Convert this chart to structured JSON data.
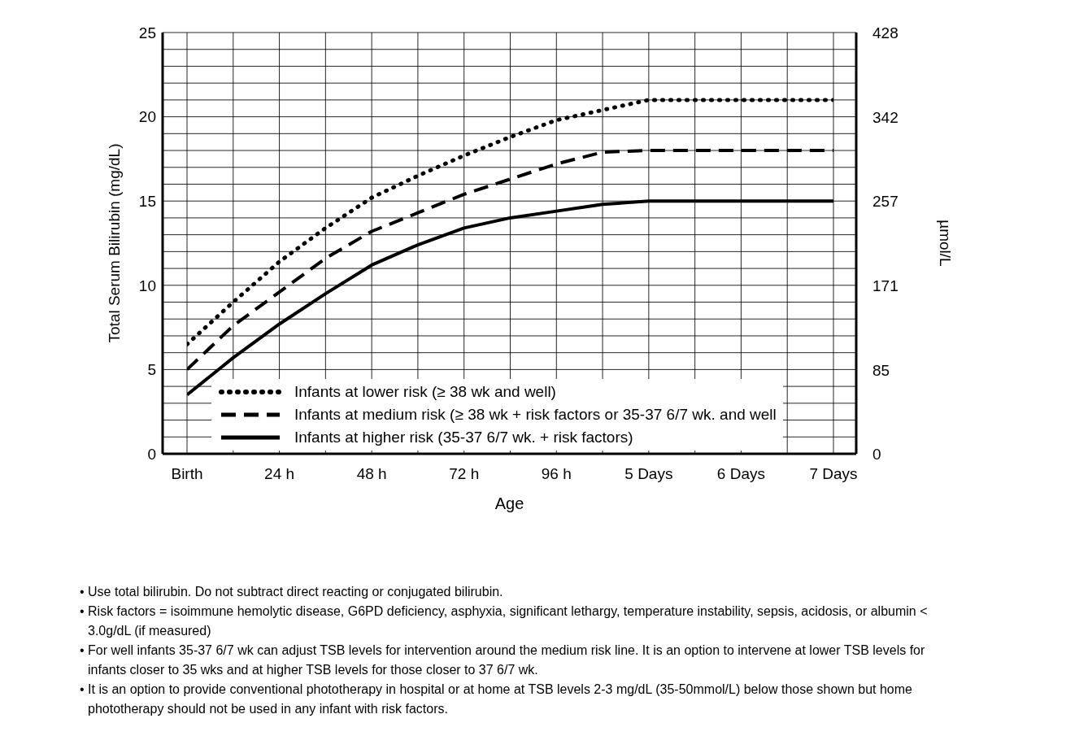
{
  "chart_data": {
    "type": "line",
    "xlabel": "Age",
    "ylabel": "Total Serum Bilirubin (mg/dL)",
    "y2label": "µmol/L",
    "categories": [
      "Birth",
      null,
      "24 h",
      null,
      "48 h",
      null,
      "72 h",
      null,
      "96 h",
      null,
      "5 Days",
      null,
      "6 Days",
      null,
      "7 Days"
    ],
    "ylim": [
      0,
      25
    ],
    "yticks": [
      0,
      {
        "value": 1,
        "label": null
      },
      {
        "value": 2,
        "label": null
      },
      {
        "value": 3,
        "label": null
      },
      {
        "value": 4,
        "label": null
      },
      5,
      {
        "value": 6,
        "label": null
      },
      {
        "value": 7,
        "label": null
      },
      {
        "value": 8,
        "label": null
      },
      {
        "value": 9,
        "label": null
      },
      10,
      {
        "value": 11,
        "label": null
      },
      {
        "value": 12,
        "label": null
      },
      {
        "value": 13,
        "label": null
      },
      {
        "value": 14,
        "label": null
      },
      15,
      {
        "value": 16,
        "label": null
      },
      {
        "value": 17,
        "label": null
      },
      {
        "value": 18,
        "label": null
      },
      {
        "value": 19,
        "label": null
      },
      20,
      {
        "value": 21,
        "label": null
      },
      {
        "value": 22,
        "label": null
      },
      {
        "value": 23,
        "label": null
      },
      {
        "value": 24,
        "label": null
      },
      25
    ],
    "y2lim": [
      0,
      428
    ],
    "y2ticks": [
      0,
      85,
      171,
      257,
      342,
      428
    ],
    "grid": true,
    "legend": "bottom",
    "marker": "none",
    "series": [
      {
        "name": "Infants at lower risk (≥ 38 wk and well)",
        "color": "#000000",
        "line_style": "dotted",
        "values": [
          6.5,
          9.0,
          11.4,
          13.4,
          15.2,
          16.5,
          17.7,
          18.8,
          19.8,
          20.4,
          21.0,
          21.0,
          21.0,
          21.0,
          21.0
        ]
      },
      {
        "name": "Infants at medium risk (≥ 38 wk + risk factors or 35-37 6/7 wk. and well",
        "color": "#000000",
        "line_style": "dashed",
        "values": [
          5.0,
          7.6,
          9.6,
          11.6,
          13.2,
          14.3,
          15.4,
          16.3,
          17.2,
          17.9,
          18.0,
          18.0,
          18.0,
          18.0,
          18.0
        ]
      },
      {
        "name": "Infants at higher risk (35-37 6/7 wk. + risk factors)",
        "color": "#000000",
        "line_style": "solid",
        "values": [
          3.5,
          5.7,
          7.7,
          9.5,
          11.2,
          12.4,
          13.4,
          14.0,
          14.4,
          14.8,
          15.0,
          15.0,
          15.0,
          15.0,
          15.0
        ]
      }
    ],
    "annotations": [
      "• Use total bilirubin.  Do not subtract direct reacting or conjugated bilirubin.",
      "• Risk factors = isoimmune hemolytic disease, G6PD deficiency, asphyxia, significant lethargy, temperature instability, sepsis, acidosis, or albumin < 3.0g/dL (if measured)",
      "• For well infants 35-37 6/7 wk can adjust TSB levels for intervention around the medium risk line.  It is an option to intervene at lower TSB levels for infants closer to 35 wks and at higher TSB levels for those closer to 37 6/7 wk.",
      "• It is an option to provide conventional phototherapy in hospital or at home at TSB levels 2-3 mg/dL (35-50mmol/L) below those shown but home phototherapy should not be used in any infant with risk factors."
    ]
  }
}
